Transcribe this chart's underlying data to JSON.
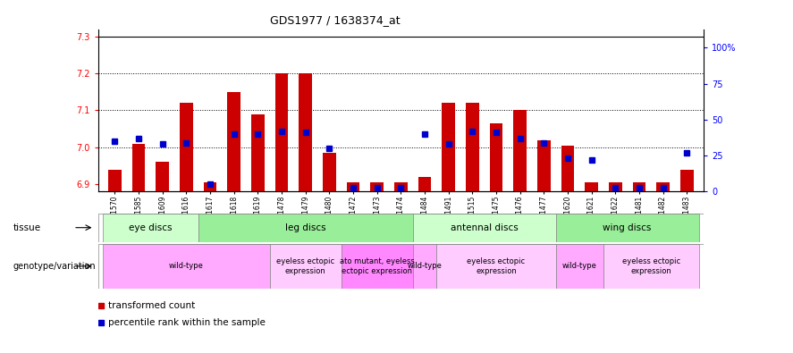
{
  "title": "GDS1977 / 1638374_at",
  "samples": [
    "GSM91570",
    "GSM91585",
    "GSM91609",
    "GSM91616",
    "GSM91617",
    "GSM91618",
    "GSM91619",
    "GSM91478",
    "GSM91479",
    "GSM91480",
    "GSM91472",
    "GSM91473",
    "GSM91474",
    "GSM91484",
    "GSM91491",
    "GSM91515",
    "GSM91475",
    "GSM91476",
    "GSM91477",
    "GSM91620",
    "GSM91621",
    "GSM91622",
    "GSM91481",
    "GSM91482",
    "GSM91483"
  ],
  "red_values": [
    6.94,
    7.01,
    6.96,
    7.12,
    6.905,
    7.15,
    7.09,
    7.2,
    7.2,
    6.985,
    6.905,
    6.905,
    6.905,
    6.92,
    7.12,
    7.12,
    7.065,
    7.1,
    7.02,
    7.005,
    6.905,
    6.905,
    6.905,
    6.905,
    6.94
  ],
  "blue_values": [
    35,
    37,
    33,
    34,
    5,
    40,
    40,
    42,
    41,
    30,
    3,
    3,
    3,
    40,
    33,
    42,
    41,
    37,
    34,
    23,
    22,
    3,
    3,
    3,
    27
  ],
  "ylim_red": [
    6.88,
    7.32
  ],
  "ylim_blue": [
    0,
    113
  ],
  "yticks_red": [
    6.9,
    7.0,
    7.1,
    7.2,
    7.3
  ],
  "yticks_blue": [
    0,
    25,
    50,
    75,
    100
  ],
  "ytick_blue_labels": [
    "0",
    "25",
    "50",
    "75",
    "100%"
  ],
  "tissue_groups": [
    {
      "label": "eye discs",
      "start": 0,
      "end": 4,
      "color": "#ccffcc"
    },
    {
      "label": "leg discs",
      "start": 4,
      "end": 13,
      "color": "#99ee99"
    },
    {
      "label": "antennal discs",
      "start": 13,
      "end": 19,
      "color": "#ccffcc"
    },
    {
      "label": "wing discs",
      "start": 19,
      "end": 25,
      "color": "#99ee99"
    }
  ],
  "genotype_groups": [
    {
      "label": "wild-type",
      "start": 0,
      "end": 7,
      "color": "#ffaaff"
    },
    {
      "label": "eyeless ectopic\nexpression",
      "start": 7,
      "end": 10,
      "color": "#ffccff"
    },
    {
      "label": "ato mutant, eyeless\nectopic expression",
      "start": 10,
      "end": 13,
      "color": "#ff88ff"
    },
    {
      "label": "wild-type",
      "start": 13,
      "end": 14,
      "color": "#ffaaff"
    },
    {
      "label": "eyeless ectopic\nexpression",
      "start": 14,
      "end": 19,
      "color": "#ffccff"
    },
    {
      "label": "wild-type",
      "start": 19,
      "end": 21,
      "color": "#ffaaff"
    },
    {
      "label": "eyeless ectopic\nexpression",
      "start": 21,
      "end": 25,
      "color": "#ffccff"
    }
  ],
  "red_color": "#cc0000",
  "blue_color": "#0000cc",
  "bar_baseline": 6.88,
  "legend_red": "transformed count",
  "legend_blue": "percentile rank within the sample",
  "plot_bg": "#f0f0f0",
  "fig_bg": "#ffffff"
}
